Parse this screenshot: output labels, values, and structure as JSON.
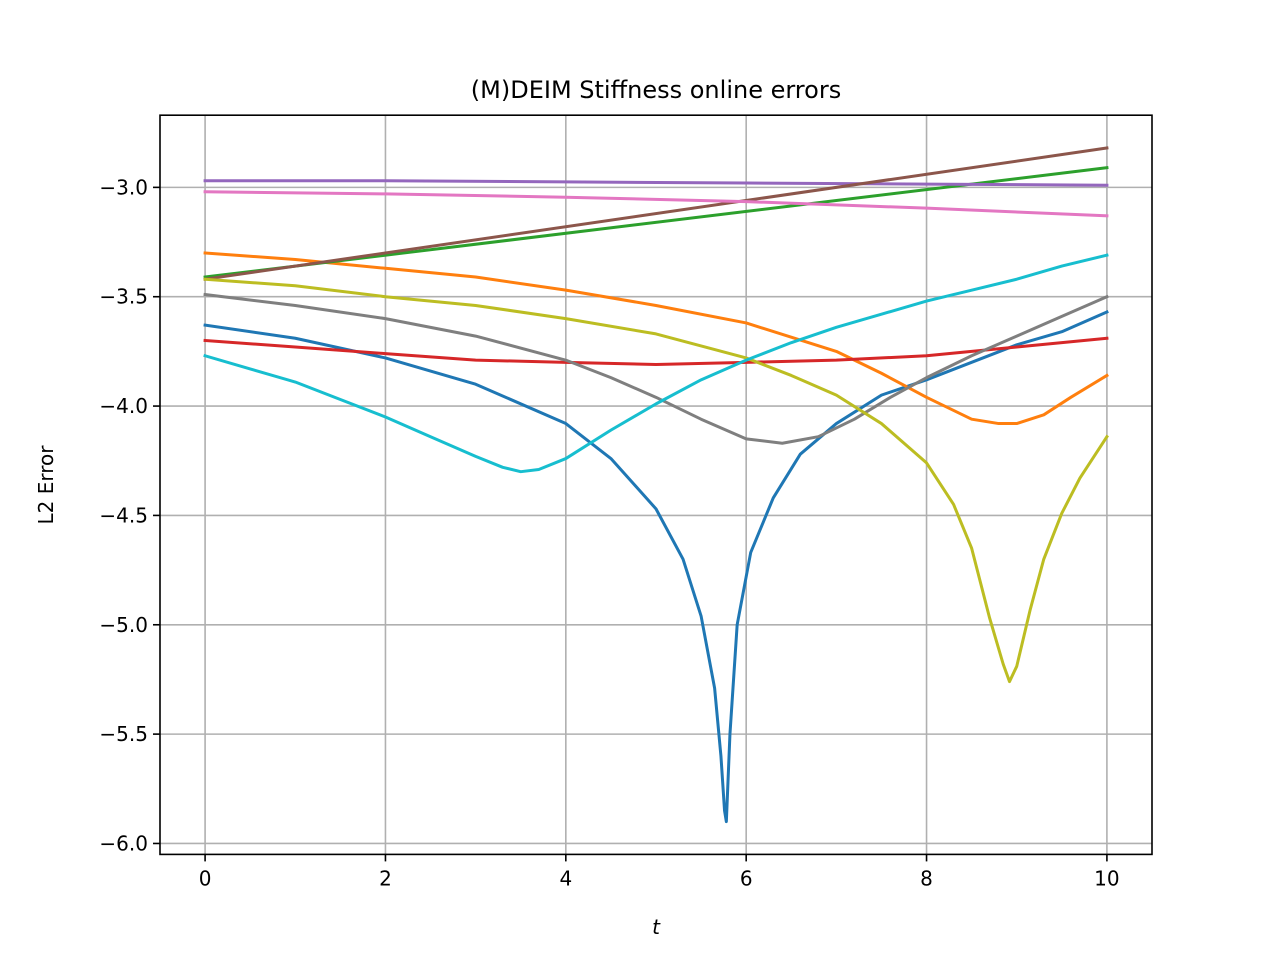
{
  "chart_data": {
    "type": "line",
    "title": "(M)DEIM Stiffness online errors",
    "xlabel": "t",
    "ylabel": "L2 Error",
    "xlim": [
      -0.5,
      10.5
    ],
    "ylim": [
      -6.05,
      -2.67
    ],
    "xticks": [
      0,
      2,
      4,
      6,
      8,
      10
    ],
    "xtick_labels": [
      "0",
      "2",
      "4",
      "6",
      "8",
      "10"
    ],
    "yticks": [
      -6.0,
      -5.5,
      -5.0,
      -4.5,
      -4.0,
      -3.5,
      -3.0
    ],
    "ytick_labels": [
      "−6.0",
      "−5.5",
      "−5.0",
      "−4.5",
      "−4.0",
      "−3.5",
      "−3.0"
    ],
    "grid": true,
    "series": [
      {
        "color": "#1f77b4",
        "x": [
          0,
          1,
          2,
          3,
          4,
          4.5,
          5,
          5.3,
          5.5,
          5.65,
          5.72,
          5.76,
          5.78,
          5.82,
          5.9,
          6.05,
          6.3,
          6.6,
          7,
          7.5,
          8,
          8.5,
          9,
          9.5,
          10
        ],
        "y": [
          -3.63,
          -3.69,
          -3.78,
          -3.9,
          -4.08,
          -4.24,
          -4.47,
          -4.7,
          -4.96,
          -5.29,
          -5.6,
          -5.85,
          -5.9,
          -5.5,
          -5.0,
          -4.67,
          -4.42,
          -4.22,
          -4.08,
          -3.95,
          -3.88,
          -3.8,
          -3.72,
          -3.66,
          -3.57
        ]
      },
      {
        "color": "#ff7f0e",
        "x": [
          0,
          1,
          2,
          3,
          4,
          5,
          6,
          7,
          7.5,
          8,
          8.5,
          8.8,
          9,
          9.3,
          9.6,
          10
        ],
        "y": [
          -3.3,
          -3.33,
          -3.37,
          -3.41,
          -3.47,
          -3.54,
          -3.62,
          -3.75,
          -3.85,
          -3.96,
          -4.06,
          -4.08,
          -4.08,
          -4.04,
          -3.96,
          -3.86
        ]
      },
      {
        "color": "#2ca02c",
        "x": [
          0,
          10
        ],
        "y": [
          -3.41,
          -2.91
        ]
      },
      {
        "color": "#d62728",
        "x": [
          0,
          1,
          2,
          3,
          4,
          5,
          6,
          7,
          8,
          9,
          10
        ],
        "y": [
          -3.7,
          -3.73,
          -3.76,
          -3.79,
          -3.8,
          -3.81,
          -3.8,
          -3.79,
          -3.77,
          -3.73,
          -3.69
        ]
      },
      {
        "color": "#9467bd",
        "x": [
          0,
          2,
          4,
          6,
          8,
          10
        ],
        "y": [
          -2.97,
          -2.97,
          -2.975,
          -2.98,
          -2.985,
          -2.99
        ]
      },
      {
        "color": "#8c564b",
        "x": [
          0,
          10
        ],
        "y": [
          -3.42,
          -2.82
        ]
      },
      {
        "color": "#e377c2",
        "x": [
          0,
          2,
          4,
          6,
          8,
          10
        ],
        "y": [
          -3.02,
          -3.03,
          -3.045,
          -3.065,
          -3.095,
          -3.13
        ]
      },
      {
        "color": "#7f7f7f",
        "x": [
          0,
          1,
          2,
          3,
          4,
          4.5,
          5,
          5.5,
          6,
          6.4,
          6.8,
          7.2,
          7.6,
          8,
          8.5,
          9,
          9.5,
          10
        ],
        "y": [
          -3.49,
          -3.54,
          -3.6,
          -3.68,
          -3.79,
          -3.87,
          -3.96,
          -4.06,
          -4.15,
          -4.17,
          -4.14,
          -4.06,
          -3.96,
          -3.87,
          -3.77,
          -3.68,
          -3.59,
          -3.5
        ]
      },
      {
        "color": "#bcbd22",
        "x": [
          0,
          1,
          2,
          3,
          4,
          5,
          6,
          6.5,
          7,
          7.5,
          8,
          8.3,
          8.5,
          8.7,
          8.85,
          8.92,
          9,
          9.15,
          9.3,
          9.5,
          9.7,
          10
        ],
        "y": [
          -3.42,
          -3.45,
          -3.5,
          -3.54,
          -3.6,
          -3.67,
          -3.78,
          -3.86,
          -3.95,
          -4.08,
          -4.26,
          -4.45,
          -4.65,
          -4.97,
          -5.18,
          -5.26,
          -5.19,
          -4.93,
          -4.7,
          -4.49,
          -4.33,
          -4.14
        ]
      },
      {
        "color": "#17becf",
        "x": [
          0,
          0.5,
          1,
          1.5,
          2,
          2.5,
          3,
          3.3,
          3.5,
          3.7,
          4,
          4.5,
          5,
          5.5,
          6,
          6.5,
          7,
          7.5,
          8,
          8.5,
          9,
          9.5,
          10
        ],
        "y": [
          -3.77,
          -3.83,
          -3.89,
          -3.97,
          -4.05,
          -4.14,
          -4.23,
          -4.28,
          -4.3,
          -4.29,
          -4.24,
          -4.11,
          -3.99,
          -3.88,
          -3.79,
          -3.71,
          -3.64,
          -3.58,
          -3.52,
          -3.47,
          -3.42,
          -3.36,
          -3.31
        ]
      }
    ]
  }
}
